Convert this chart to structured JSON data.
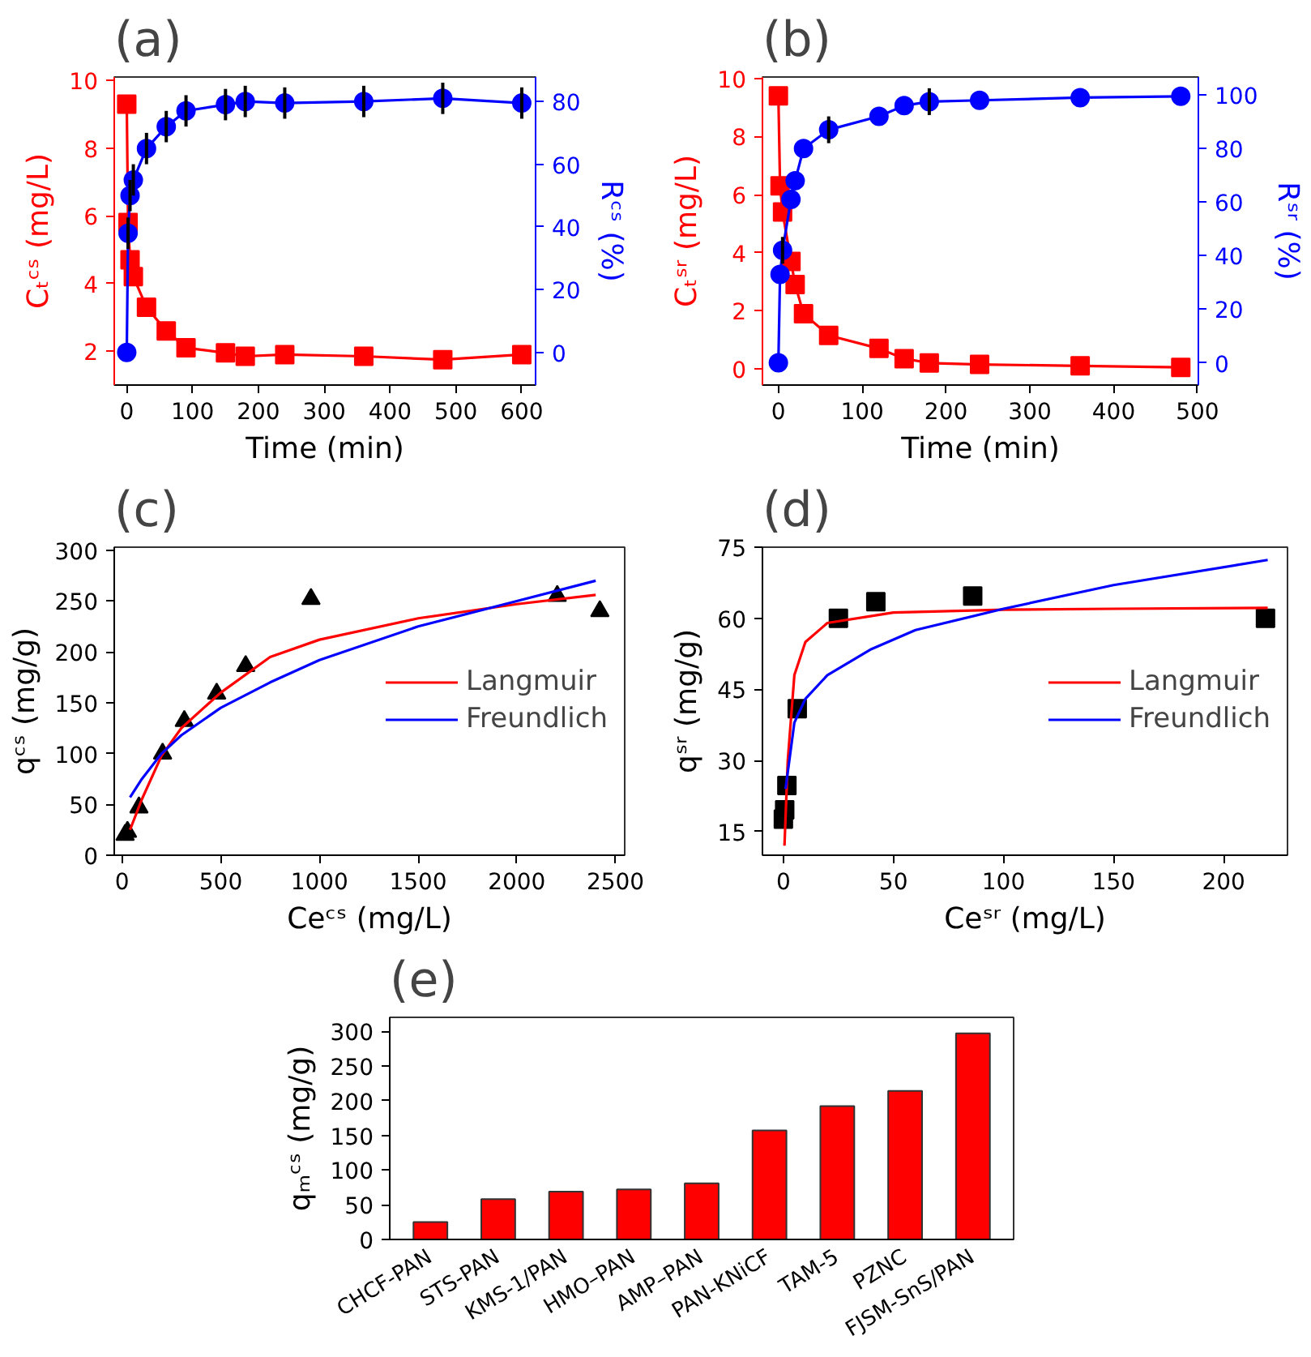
{
  "chart_data": [
    {
      "type": "line",
      "title": "(a)",
      "xlabel": "Time (min)",
      "ylabel": "Cₜᶜˢ (mg/L)",
      "y2label": "Rᶜˢ (%)",
      "xlim": [
        -19,
        621
      ],
      "xticks": [
        0,
        100,
        200,
        300,
        400,
        500,
        600
      ],
      "ylim": [
        1,
        10.1
      ],
      "yticks": [
        2,
        4,
        6,
        8,
        10
      ],
      "y2lim": [
        -10.4,
        87.8
      ],
      "y2ticks": [
        0,
        20,
        40,
        60,
        80
      ],
      "grid": false,
      "series": [
        {
          "type": "line",
          "marker": "square",
          "color": "#ff0000",
          "x": [
            0,
            2,
            5,
            10,
            30,
            60,
            90,
            150,
            180,
            240,
            360,
            480,
            600
          ],
          "values": [
            9.3,
            5.8,
            4.7,
            4.2,
            3.3,
            2.6,
            2.1,
            1.95,
            1.85,
            1.9,
            1.85,
            1.75,
            1.9
          ]
        },
        {
          "type": "line",
          "marker": "circle",
          "axis": "y2",
          "color": "#0000ff",
          "x": [
            0,
            2,
            5,
            10,
            30,
            60,
            90,
            150,
            180,
            240,
            360,
            480,
            600
          ],
          "values": [
            0,
            38,
            50,
            55,
            65,
            72,
            77,
            79,
            80,
            79.5,
            80,
            81,
            79.5
          ],
          "errors": [
            null,
            5,
            5,
            5,
            5,
            5,
            5,
            5,
            5,
            5,
            5,
            5,
            5
          ]
        }
      ]
    },
    {
      "type": "line",
      "title": "(b)",
      "xlabel": "Time (min)",
      "ylabel": "Cₜˢʳ (mg/L)",
      "y2label": "Rˢʳ (%)",
      "xlim": [
        -19,
        501
      ],
      "xticks": [
        0,
        100,
        200,
        300,
        400,
        500
      ],
      "ylim": [
        -0.56,
        10.05
      ],
      "yticks": [
        0,
        2,
        4,
        6,
        8,
        10
      ],
      "y2lim": [
        -8.3,
        106.7
      ],
      "y2ticks": [
        0,
        20,
        40,
        60,
        80,
        100
      ],
      "grid": false,
      "series": [
        {
          "type": "line",
          "marker": "square",
          "color": "#ff0000",
          "x": [
            0,
            2,
            5,
            15,
            20,
            30,
            60,
            120,
            150,
            180,
            240,
            360,
            480
          ],
          "values": [
            9.4,
            6.3,
            5.4,
            3.7,
            2.9,
            1.9,
            1.15,
            0.7,
            0.35,
            0.2,
            0.15,
            0.1,
            0.05
          ]
        },
        {
          "type": "line",
          "marker": "circle",
          "axis": "y2",
          "color": "#0000ff",
          "x": [
            0,
            2,
            5,
            15,
            20,
            30,
            60,
            120,
            150,
            180,
            240,
            360,
            480
          ],
          "values": [
            0,
            33,
            42,
            61,
            68,
            80,
            87,
            92,
            96,
            97.5,
            98,
            99,
            99.5
          ],
          "errors": [
            null,
            null,
            5,
            null,
            null,
            null,
            5,
            null,
            null,
            5,
            null,
            null,
            null
          ]
        }
      ]
    },
    {
      "type": "scatter",
      "title": "(c)",
      "xlabel": "Ceᶜˢ (mg/L)",
      "ylabel": "qᶜˢ (mg/g)",
      "xlim": [
        -40,
        2547
      ],
      "xticks": [
        0,
        500,
        1000,
        1500,
        2000,
        2500
      ],
      "ylim": [
        0,
        303
      ],
      "yticks": [
        0,
        50,
        100,
        150,
        200,
        250,
        300
      ],
      "grid": false,
      "legend": "right",
      "series": [
        {
          "type": "scatter",
          "marker": "triangle",
          "color": "#000000",
          "x": [
            15,
            27,
            85,
            205,
            315,
            479,
            626,
            957,
            2205,
            2421
          ],
          "values": [
            20,
            23,
            47,
            100,
            132,
            159,
            186,
            252,
            255,
            240
          ]
        },
        {
          "type": "line",
          "name": "Langmuir",
          "color": "#ff0000",
          "x": [
            40,
            100,
            200,
            300,
            500,
            750,
            1000,
            1500,
            2000,
            2400
          ],
          "values": [
            25,
            55,
            98,
            125,
            160,
            195,
            212,
            233,
            247,
            256
          ]
        },
        {
          "type": "line",
          "name": "Freundlich",
          "color": "#0000ff",
          "x": [
            40,
            100,
            200,
            300,
            500,
            750,
            1000,
            1500,
            2000,
            2400
          ],
          "values": [
            57,
            75,
            100,
            118,
            145,
            170,
            192,
            225,
            250,
            270
          ]
        }
      ]
    },
    {
      "type": "scatter",
      "title": "(d)",
      "xlabel": "Ceˢʳ (mg/L)",
      "ylabel": "qˢʳ (mg/g)",
      "xlim": [
        -9.5,
        229
      ],
      "xticks": [
        0,
        50,
        100,
        150,
        200
      ],
      "ylim": [
        10,
        75
      ],
      "yticks": [
        15,
        30,
        45,
        60,
        75
      ],
      "grid": false,
      "legend": "right",
      "series": [
        {
          "type": "scatter",
          "marker": "square",
          "color": "#000000",
          "x": [
            0,
            0.6,
            1.6,
            6.3,
            25,
            42,
            86,
            219
          ],
          "values": [
            17.6,
            19.6,
            24.7,
            40.9,
            60,
            63.5,
            64.7,
            60
          ]
        },
        {
          "type": "line",
          "name": "Langmuir",
          "color": "#ff0000",
          "x": [
            0.5,
            2,
            5,
            10,
            20,
            50,
            100,
            150,
            220
          ],
          "values": [
            12,
            30,
            48,
            55,
            59,
            61.2,
            61.8,
            62,
            62.2
          ]
        },
        {
          "type": "line",
          "name": "Freundlich",
          "color": "#0000ff",
          "x": [
            1,
            5,
            10,
            20,
            40,
            60,
            100,
            150,
            220
          ],
          "values": [
            24,
            38,
            43,
            48,
            53.5,
            57.5,
            62,
            67,
            72.3
          ]
        }
      ]
    },
    {
      "type": "bar",
      "title": "(e)",
      "ylabel": "qₘᶜˢ (mg/g)",
      "categories": [
        "CHCF-PAN",
        "STS-PAN",
        "KMS-1/PAN",
        "HMO–PAN",
        "AMP–PAN",
        "PAN-KNiCF",
        "TAM-5",
        "PZNC",
        "FJSM-SnS/PAN"
      ],
      "values": [
        25,
        58,
        69,
        72,
        81,
        157,
        192,
        214,
        297
      ],
      "color": "#ff0000",
      "ylim": [
        0,
        320
      ],
      "yticks": [
        0,
        50,
        100,
        150,
        200,
        250,
        300
      ],
      "grid": false
    }
  ]
}
